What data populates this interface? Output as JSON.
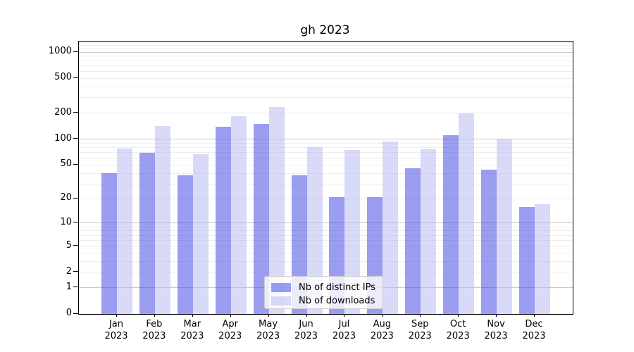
{
  "chart_data": {
    "type": "bar",
    "title": "gh 2023",
    "categories": [
      "Jan",
      "Feb",
      "Mar",
      "Apr",
      "May",
      "Jun",
      "Jul",
      "Aug",
      "Sep",
      "Oct",
      "Nov",
      "Dec"
    ],
    "category_year": "2023",
    "series": [
      {
        "name": "Nb of distinct IPs",
        "color_on_white": "#9b9df0",
        "fill": "rgba(55,59,225,0.5)",
        "values": [
          40,
          69,
          38,
          139,
          150,
          38,
          21,
          21,
          46,
          111,
          44,
          16
        ]
      },
      {
        "name": "Nb of downloads",
        "color_on_white": "#d9daf8",
        "fill": "rgba(179,181,241,0.5)",
        "values": [
          78,
          143,
          67,
          186,
          235,
          81,
          75,
          94,
          76,
          200,
          100,
          17
        ]
      }
    ],
    "yscale": "log10(1+x)",
    "y_ticks": [
      0,
      1,
      2,
      5,
      10,
      20,
      50,
      100,
      200,
      500,
      1000
    ],
    "y_minor_ticks": [
      2,
      3,
      4,
      5,
      6,
      7,
      8,
      9,
      20,
      30,
      40,
      50,
      60,
      70,
      80,
      90,
      200,
      300,
      400,
      500,
      600,
      700,
      800,
      900,
      1100,
      1200,
      1300
    ],
    "y_major_gridlines": [
      1,
      10,
      100,
      1000
    ],
    "ylim": [
      0,
      1327
    ],
    "grid": true,
    "legend_position": "lower center",
    "colors": {
      "major_grid": "#c8c8c8",
      "minor_grid": "#ededed",
      "spine": "#000000",
      "text": "#000000"
    }
  }
}
